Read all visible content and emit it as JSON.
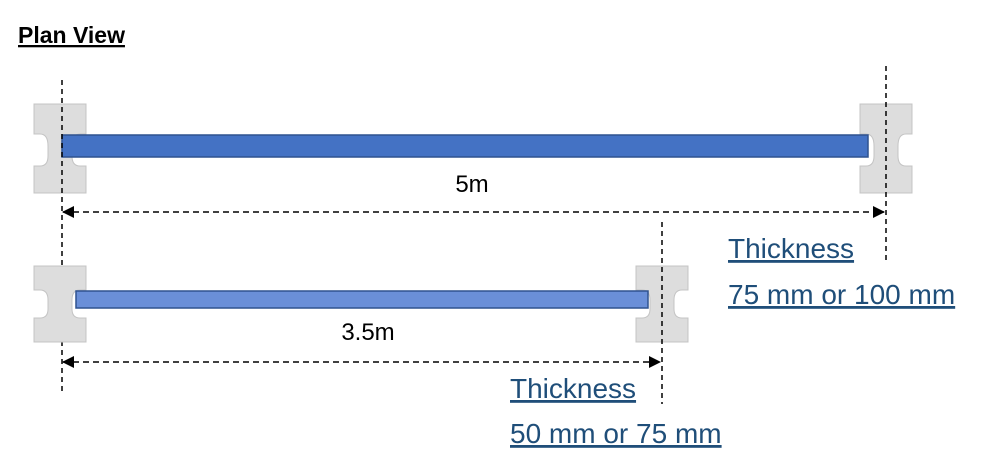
{
  "title": "Plan View",
  "colors": {
    "panel_fill": "#4472c4",
    "panel_stroke": "#2f528f",
    "panel_fill_light": "#6a8fd8",
    "post_fill": "#dddddd",
    "post_stroke": "#c4c4c4",
    "thickness_text": "#1f4e79",
    "line": "#000000"
  },
  "panels": [
    {
      "length_label": "5m",
      "thickness_label": "Thickness",
      "thickness_values": "75 mm or 100 mm"
    },
    {
      "length_label": "3.5m",
      "thickness_label": "Thickness",
      "thickness_values": "50 mm or 75 mm"
    }
  ]
}
